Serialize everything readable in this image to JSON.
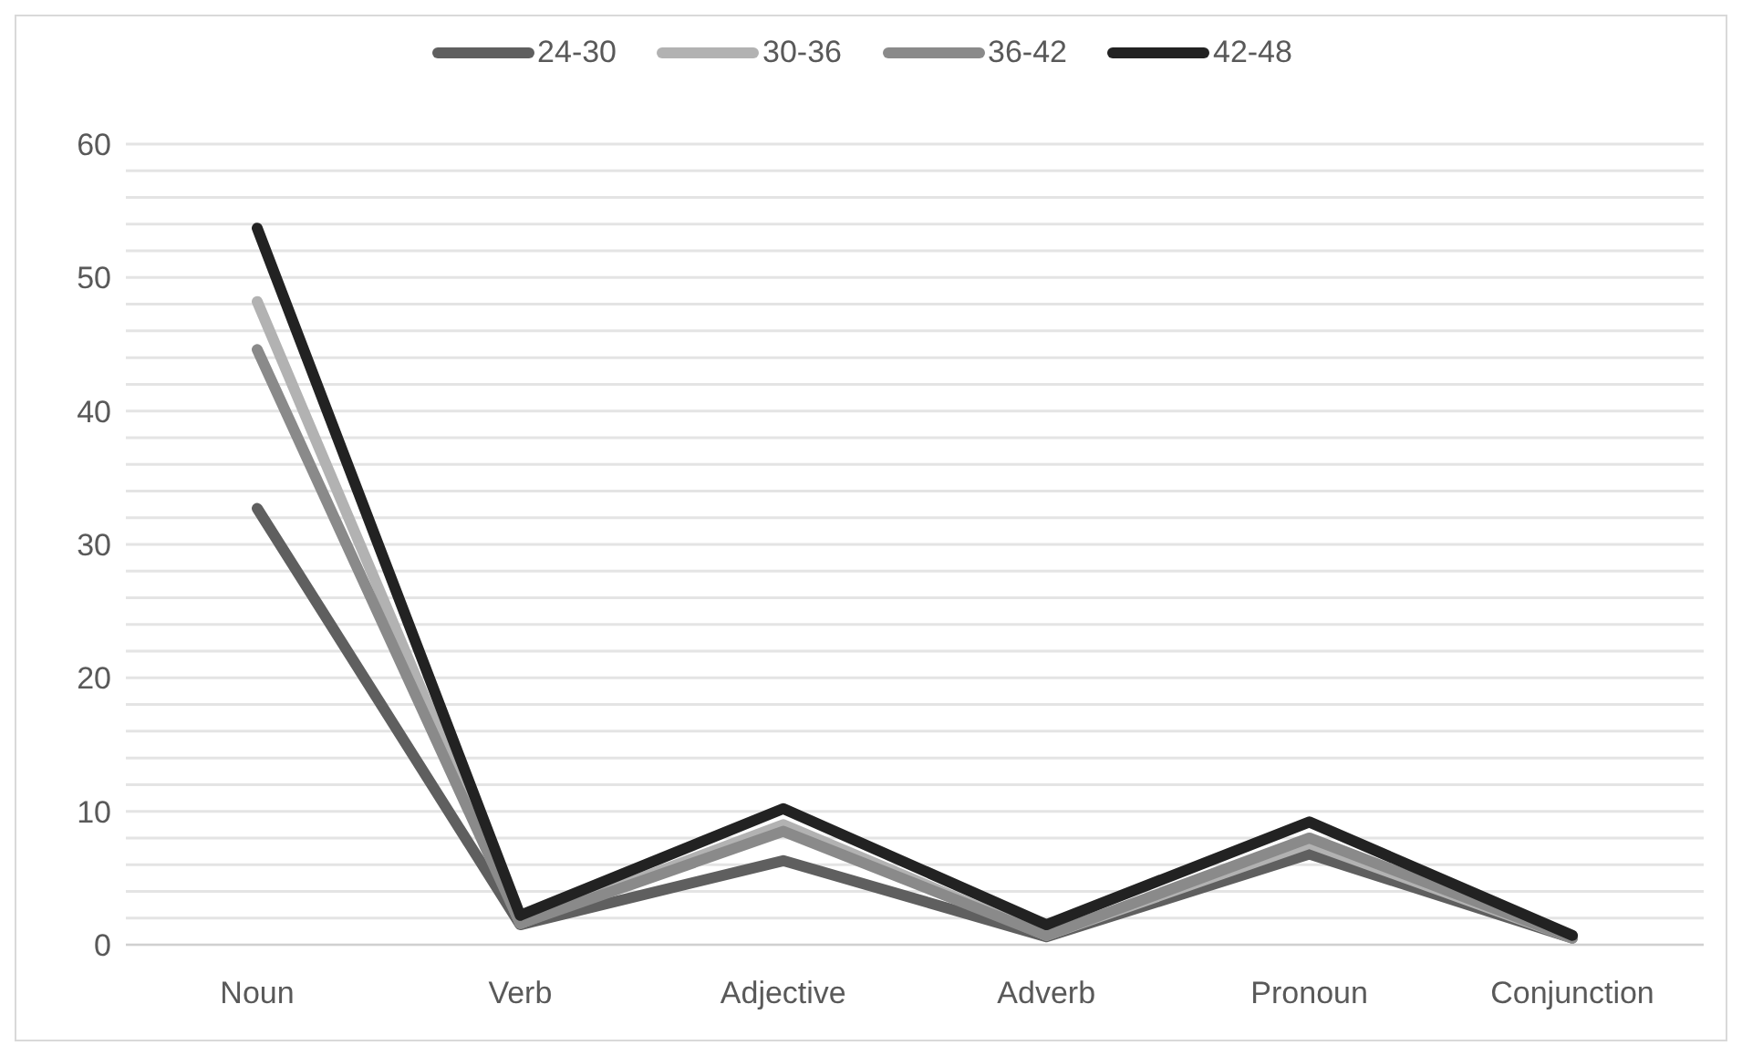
{
  "chart_data": {
    "type": "line",
    "categories": [
      "Noun",
      "Verb",
      "Adjective",
      "Adverb",
      "Pronoun",
      "Conjunction"
    ],
    "series": [
      {
        "name": "24-30",
        "color": "#5f5f5f",
        "values": [
          32.7,
          1.5,
          6.3,
          0.6,
          6.8,
          0.5
        ]
      },
      {
        "name": "30-36",
        "color": "#b2b2b2",
        "values": [
          48.2,
          1.6,
          9.0,
          0.7,
          7.6,
          0.5
        ]
      },
      {
        "name": "36-42",
        "color": "#8a8a8a",
        "values": [
          44.6,
          1.6,
          8.5,
          0.7,
          8.0,
          0.5
        ]
      },
      {
        "name": "42-48",
        "color": "#222222",
        "values": [
          53.7,
          2.2,
          10.2,
          1.5,
          9.2,
          0.7
        ]
      }
    ],
    "ylim": [
      0,
      60
    ],
    "yticks": [
      0,
      {
        "value": 2,
        "label": null
      },
      {
        "value": 4,
        "label": null
      },
      {
        "value": 6,
        "label": null
      },
      {
        "value": 8,
        "label": null
      },
      10,
      {
        "value": 12,
        "label": null
      },
      {
        "value": 14,
        "label": null
      },
      {
        "value": 16,
        "label": null
      },
      {
        "value": 18,
        "label": null
      },
      20,
      {
        "value": 22,
        "label": null
      },
      {
        "value": 24,
        "label": null
      },
      {
        "value": 26,
        "label": null
      },
      {
        "value": 28,
        "label": null
      },
      30,
      {
        "value": 32,
        "label": null
      },
      {
        "value": 34,
        "label": null
      },
      {
        "value": 36,
        "label": null
      },
      {
        "value": 38,
        "label": null
      },
      40,
      {
        "value": 42,
        "label": null
      },
      {
        "value": 44,
        "label": null
      },
      {
        "value": 46,
        "label": null
      },
      {
        "value": 48,
        "label": null
      },
      50,
      {
        "value": 52,
        "label": null
      },
      {
        "value": 54,
        "label": null
      },
      {
        "value": 56,
        "label": null
      },
      {
        "value": 58,
        "label": null
      },
      60
    ],
    "grid": "y",
    "legend": "top",
    "marker": "none",
    "line_style": "solid"
  }
}
